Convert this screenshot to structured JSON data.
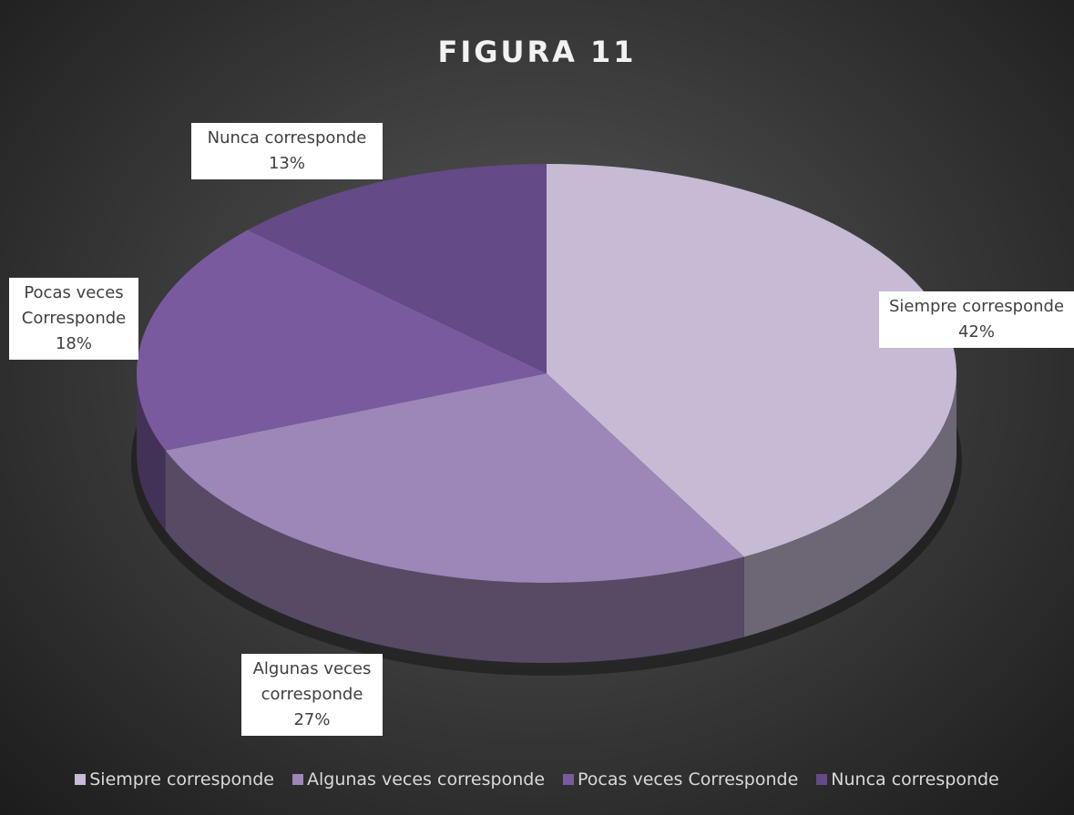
{
  "chart_data": {
    "type": "pie",
    "title": "FIGURA 11",
    "categories": [
      "Siempre corresponde",
      "Algunas veces corresponde",
      "Pocas veces Corresponde",
      "Nunca corresponde"
    ],
    "values": [
      42,
      27,
      18,
      13
    ],
    "value_labels": [
      "42%",
      "27%",
      "18%",
      "13%"
    ],
    "colors": [
      "#c6bad5",
      "#9c87b8",
      "#7a5a9f",
      "#644a86"
    ],
    "legend": "bottom"
  }
}
